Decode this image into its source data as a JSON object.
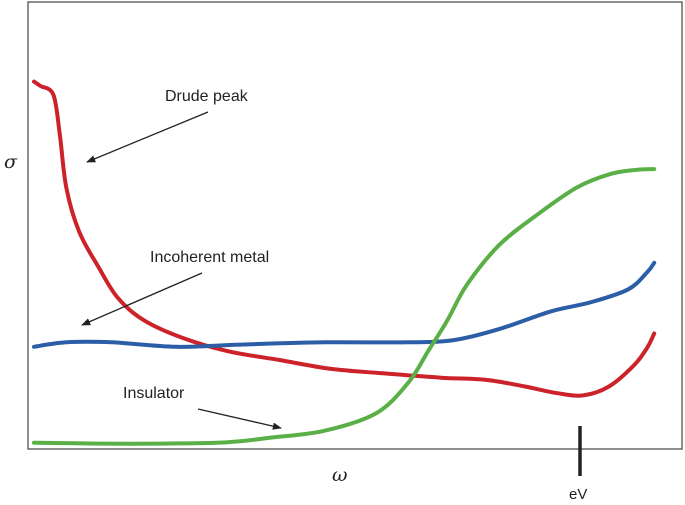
{
  "chart_data": {
    "type": "line",
    "title": "",
    "xlabel": "ω",
    "ylabel": "σ",
    "x_tick_labels": [
      "eV"
    ],
    "grid": false,
    "legend": "none",
    "series": [
      {
        "color": "#cc2229",
        "points": [
          [
            0.0,
            0.82
          ],
          [
            0.01,
            0.81
          ],
          [
            0.03,
            0.79
          ],
          [
            0.04,
            0.7
          ],
          [
            0.05,
            0.58
          ],
          [
            0.07,
            0.48
          ],
          [
            0.1,
            0.4
          ],
          [
            0.13,
            0.33
          ],
          [
            0.17,
            0.28
          ],
          [
            0.23,
            0.24
          ],
          [
            0.3,
            0.21
          ],
          [
            0.38,
            0.19
          ],
          [
            0.46,
            0.17
          ],
          [
            0.54,
            0.16
          ],
          [
            0.63,
            0.15
          ],
          [
            0.7,
            0.145
          ],
          [
            0.76,
            0.13
          ],
          [
            0.81,
            0.115
          ],
          [
            0.85,
            0.11
          ],
          [
            0.89,
            0.13
          ],
          [
            0.93,
            0.18
          ],
          [
            0.95,
            0.22
          ],
          [
            0.96,
            0.25
          ]
        ]
      },
      {
        "color": "#2b5ea7",
        "points": [
          [
            0.0,
            0.22
          ],
          [
            0.05,
            0.23
          ],
          [
            0.12,
            0.23
          ],
          [
            0.22,
            0.22
          ],
          [
            0.32,
            0.225
          ],
          [
            0.45,
            0.23
          ],
          [
            0.58,
            0.23
          ],
          [
            0.65,
            0.235
          ],
          [
            0.72,
            0.26
          ],
          [
            0.8,
            0.3
          ],
          [
            0.86,
            0.32
          ],
          [
            0.92,
            0.35
          ],
          [
            0.95,
            0.39
          ],
          [
            0.96,
            0.41
          ]
        ]
      },
      {
        "color": "#5aaf46",
        "points": [
          [
            0.0,
            0.003
          ],
          [
            0.1,
            0.001
          ],
          [
            0.2,
            0.001
          ],
          [
            0.3,
            0.004
          ],
          [
            0.37,
            0.015
          ],
          [
            0.45,
            0.03
          ],
          [
            0.53,
            0.07
          ],
          [
            0.58,
            0.14
          ],
          [
            0.61,
            0.21
          ],
          [
            0.64,
            0.28
          ],
          [
            0.67,
            0.36
          ],
          [
            0.72,
            0.45
          ],
          [
            0.78,
            0.52
          ],
          [
            0.84,
            0.58
          ],
          [
            0.89,
            0.61
          ],
          [
            0.93,
            0.62
          ],
          [
            0.96,
            0.622
          ]
        ]
      }
    ],
    "annotations": [
      {
        "text": "Drude peak",
        "target": [
          0.08,
          0.64
        ]
      },
      {
        "text": "Incoherent metal",
        "target": [
          0.08,
          0.275
        ]
      },
      {
        "text": "Insulator",
        "target": [
          0.39,
          0.04
        ]
      }
    ],
    "xlim": [
      0,
      1
    ],
    "ylim": [
      0,
      1
    ]
  }
}
